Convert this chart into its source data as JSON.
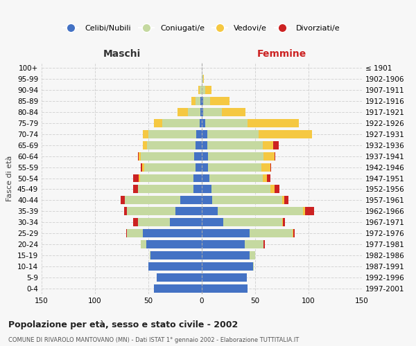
{
  "age_groups": [
    "0-4",
    "5-9",
    "10-14",
    "15-19",
    "20-24",
    "25-29",
    "30-34",
    "35-39",
    "40-44",
    "45-49",
    "50-54",
    "55-59",
    "60-64",
    "65-69",
    "70-74",
    "75-79",
    "80-84",
    "85-89",
    "90-94",
    "95-99",
    "100+"
  ],
  "birth_years": [
    "1997-2001",
    "1992-1996",
    "1987-1991",
    "1982-1986",
    "1977-1981",
    "1972-1976",
    "1967-1971",
    "1962-1966",
    "1957-1961",
    "1952-1956",
    "1947-1951",
    "1942-1946",
    "1937-1941",
    "1932-1936",
    "1927-1931",
    "1922-1926",
    "1917-1921",
    "1912-1916",
    "1907-1911",
    "1902-1906",
    "≤ 1901"
  ],
  "male": {
    "celibi": [
      45,
      42,
      50,
      48,
      52,
      55,
      30,
      25,
      20,
      8,
      8,
      6,
      7,
      6,
      5,
      2,
      1,
      1,
      0,
      0,
      0
    ],
    "coniugati": [
      0,
      0,
      0,
      1,
      5,
      15,
      30,
      45,
      52,
      52,
      50,
      48,
      50,
      45,
      45,
      35,
      12,
      5,
      2,
      0,
      0
    ],
    "vedovi": [
      0,
      0,
      0,
      0,
      0,
      0,
      0,
      0,
      0,
      0,
      1,
      2,
      2,
      4,
      5,
      8,
      10,
      4,
      1,
      0,
      0
    ],
    "divorziati": [
      0,
      0,
      0,
      0,
      0,
      1,
      4,
      3,
      4,
      4,
      5,
      1,
      1,
      0,
      0,
      0,
      0,
      0,
      0,
      0,
      0
    ]
  },
  "female": {
    "nubili": [
      43,
      42,
      48,
      45,
      40,
      45,
      20,
      15,
      10,
      9,
      7,
      6,
      6,
      5,
      5,
      3,
      1,
      1,
      0,
      0,
      0
    ],
    "coniugate": [
      0,
      0,
      1,
      5,
      18,
      40,
      55,
      80,
      65,
      55,
      50,
      50,
      52,
      52,
      48,
      40,
      18,
      7,
      3,
      1,
      0
    ],
    "vedove": [
      0,
      0,
      0,
      0,
      0,
      1,
      1,
      2,
      2,
      4,
      4,
      8,
      10,
      10,
      50,
      48,
      22,
      18,
      6,
      1,
      0
    ],
    "divorziate": [
      0,
      0,
      0,
      0,
      1,
      1,
      2,
      8,
      4,
      5,
      3,
      1,
      1,
      5,
      0,
      0,
      0,
      0,
      0,
      0,
      0
    ]
  },
  "colors": {
    "celibi": "#4472C4",
    "coniugati": "#c5d9a0",
    "vedovi": "#f5c842",
    "divorziati": "#cc2222"
  },
  "title": "Popolazione per età, sesso e stato civile - 2002",
  "subtitle": "COMUNE DI RIVAROLO MANTOVANO (MN) - Dati ISTAT 1° gennaio 2002 - Elaborazione TUTTITALIA.IT",
  "xlabel_left": "Maschi",
  "xlabel_right": "Femmine",
  "ylabel_left": "Fasce di età",
  "legend_labels": [
    "Celibi/Nubili",
    "Coniugati/e",
    "Vedovi/e",
    "Divorziati/e"
  ],
  "xlim": 150,
  "bg_color": "#f7f7f7",
  "plot_bg": "#f7f7f7",
  "grid_color": "#cccccc",
  "maschi_color": "#333333",
  "femmine_color": "#cc2222"
}
